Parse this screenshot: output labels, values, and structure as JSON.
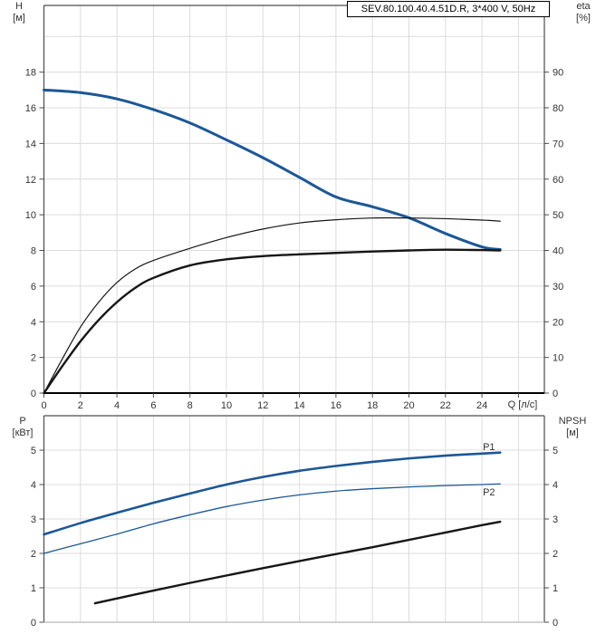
{
  "labels": {
    "h_line1": "H",
    "h_line2": "[м]",
    "eta_line1": "eta",
    "eta_line2": "[%]",
    "p_line1": "P",
    "p_line2": "[кВт]",
    "npsh_line1": "NPSH",
    "npsh_line2": "[м]",
    "q_axis": "Q [л/с]"
  },
  "colors": {
    "curve_blue": "#1d5796",
    "curve_black": "#161616",
    "grid": "#dcdcdc",
    "frame": "#4d4d4d",
    "axis_black": "#000000",
    "baseline_gray": "#b8b8b8",
    "text": "#333333"
  },
  "chart_data": [
    {
      "id": "head-efficiency",
      "type": "line",
      "title": "SEV.80.100.40.4.51D.R, 3*400 V, 50Hz",
      "x": {
        "label": "Q [л/с]",
        "min": 0,
        "max": 27.42,
        "grid_step": 2,
        "tick_label_max": 24,
        "show_tick_labels": true
      },
      "y_left": {
        "label": "H [м]",
        "min": 0,
        "max": 21.74,
        "grid_step": 2,
        "tick_label_max": 18
      },
      "y_right": {
        "label": "eta [%]",
        "min": 0,
        "max": 108.7,
        "tick_step": 10,
        "tick_label_max": 90
      },
      "baseline": "axis-black",
      "series": [
        {
          "name": "H",
          "axis": "left",
          "color": "blue",
          "width": 3,
          "points": [
            [
              0,
              17.0
            ],
            [
              2,
              16.85
            ],
            [
              4,
              16.5
            ],
            [
              6,
              15.9
            ],
            [
              8,
              15.15
            ],
            [
              10,
              14.2
            ],
            [
              12,
              13.2
            ],
            [
              14,
              12.1
            ],
            [
              16,
              11.0
            ],
            [
              18,
              10.45
            ],
            [
              20,
              9.83
            ],
            [
              22,
              8.95
            ],
            [
              24,
              8.2
            ],
            [
              25,
              8.05
            ]
          ]
        },
        {
          "name": "eta1",
          "axis": "right",
          "color": "black",
          "width": 1.2,
          "points": [
            [
              0,
              0
            ],
            [
              1,
              9.5
            ],
            [
              2,
              18.5
            ],
            [
              3,
              25.5
            ],
            [
              4,
              31
            ],
            [
              5,
              34.8
            ],
            [
              6,
              37.2
            ],
            [
              8,
              40.6
            ],
            [
              10,
              43.6
            ],
            [
              12,
              46.0
            ],
            [
              14,
              47.7
            ],
            [
              16,
              48.6
            ],
            [
              18,
              49.1
            ],
            [
              20,
              49.1
            ],
            [
              22,
              48.9
            ],
            [
              24,
              48.5
            ],
            [
              25,
              48.2
            ]
          ]
        },
        {
          "name": "eta2",
          "axis": "right",
          "color": "black",
          "width": 2.4,
          "points": [
            [
              0,
              0
            ],
            [
              1,
              7.5
            ],
            [
              2,
              14.5
            ],
            [
              3,
              20.5
            ],
            [
              4,
              25.5
            ],
            [
              5,
              29.5
            ],
            [
              6,
              32.3
            ],
            [
              8,
              35.8
            ],
            [
              10,
              37.5
            ],
            [
              12,
              38.4
            ],
            [
              14,
              38.9
            ],
            [
              16,
              39.3
            ],
            [
              18,
              39.7
            ],
            [
              20,
              40.0
            ],
            [
              22,
              40.2
            ],
            [
              24,
              40.1
            ],
            [
              25,
              40.0
            ]
          ]
        }
      ],
      "annotations": []
    },
    {
      "id": "power-npsh",
      "type": "line",
      "title": "",
      "x": {
        "label": "",
        "min": 0,
        "max": 27.42,
        "grid_step": 2,
        "tick_label_max": 24,
        "show_tick_labels": false
      },
      "y_left": {
        "label": "P [кВт]",
        "min": 0,
        "max": 6,
        "grid_step": 1,
        "tick_label_max": 5
      },
      "y_right": {
        "label": "NPSH [м]",
        "min": 0,
        "max": 6,
        "tick_step": 1,
        "tick_label_max": 5
      },
      "baseline": "gray",
      "series": [
        {
          "name": "P1",
          "axis": "left",
          "color": "blue",
          "width": 2.6,
          "points": [
            [
              0,
              2.55
            ],
            [
              2,
              2.88
            ],
            [
              4,
              3.18
            ],
            [
              6,
              3.47
            ],
            [
              8,
              3.74
            ],
            [
              10,
              4.0
            ],
            [
              12,
              4.22
            ],
            [
              14,
              4.4
            ],
            [
              16,
              4.54
            ],
            [
              18,
              4.66
            ],
            [
              20,
              4.76
            ],
            [
              22,
              4.84
            ],
            [
              24,
              4.9
            ],
            [
              25,
              4.93
            ]
          ]
        },
        {
          "name": "P2",
          "axis": "left",
          "color": "blue",
          "width": 1.3,
          "points": [
            [
              0,
              2.0
            ],
            [
              2,
              2.28
            ],
            [
              4,
              2.56
            ],
            [
              6,
              2.86
            ],
            [
              8,
              3.12
            ],
            [
              10,
              3.36
            ],
            [
              12,
              3.55
            ],
            [
              14,
              3.7
            ],
            [
              16,
              3.81
            ],
            [
              18,
              3.88
            ],
            [
              20,
              3.93
            ],
            [
              22,
              3.97
            ],
            [
              24,
              4.0
            ],
            [
              25,
              4.02
            ]
          ]
        },
        {
          "name": "NPSH",
          "axis": "right",
          "color": "black",
          "width": 2.4,
          "points": [
            [
              2.8,
              0.55
            ],
            [
              6,
              0.92
            ],
            [
              9,
              1.25
            ],
            [
              12,
              1.57
            ],
            [
              15,
              1.88
            ],
            [
              18,
              2.18
            ],
            [
              21,
              2.5
            ],
            [
              24,
              2.82
            ],
            [
              25,
              2.92
            ]
          ]
        }
      ],
      "annotations": [
        {
          "text": "P1",
          "q": 24.05,
          "value": 5.1
        },
        {
          "text": "P2",
          "q": 24.05,
          "value": 3.79
        }
      ]
    }
  ]
}
